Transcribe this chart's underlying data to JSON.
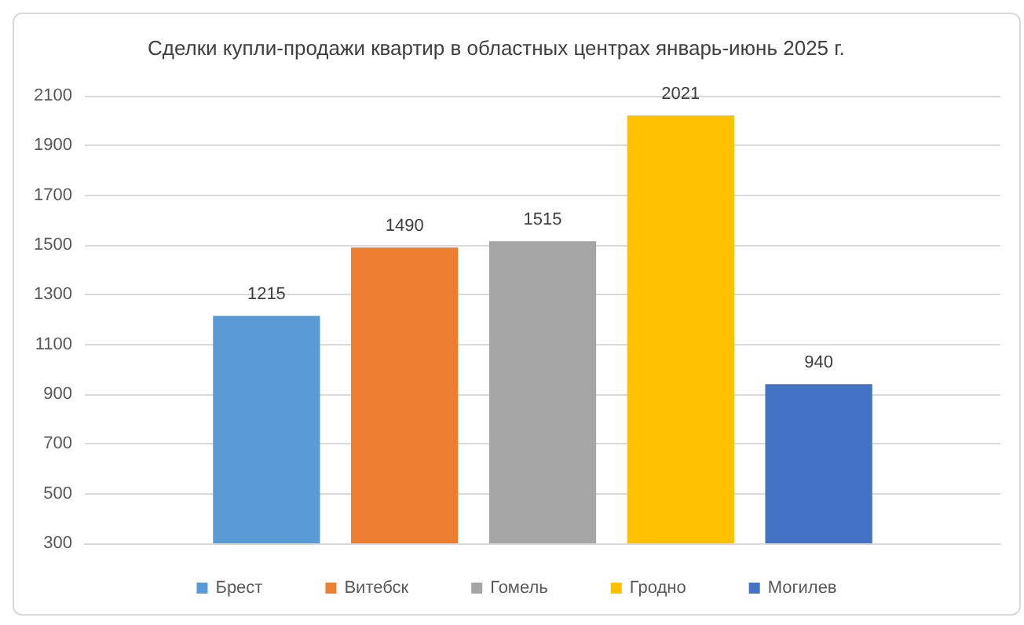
{
  "chart_data": {
    "type": "bar",
    "title": "Сделки купли-продажи квартир в областных центрах январь-июнь 2025 г.",
    "categories": [
      null
    ],
    "series": [
      {
        "name": "Брест",
        "color": "#5b9bd5",
        "values": [
          1215
        ]
      },
      {
        "name": "Витебск",
        "color": "#ed7d31",
        "values": [
          1490
        ]
      },
      {
        "name": "Гомель",
        "color": "#a5a5a5",
        "values": [
          1515
        ]
      },
      {
        "name": "Гродно",
        "color": "#ffc000",
        "values": [
          2021
        ]
      },
      {
        "name": "Могилев",
        "color": "#4472c4",
        "values": [
          940
        ]
      }
    ],
    "ylim": [
      300,
      2100
    ],
    "yticks": [
      300,
      500,
      700,
      900,
      1100,
      1300,
      1500,
      1700,
      1900,
      2100
    ],
    "grid": "y",
    "legend": "bottom",
    "data_labels": true
  }
}
